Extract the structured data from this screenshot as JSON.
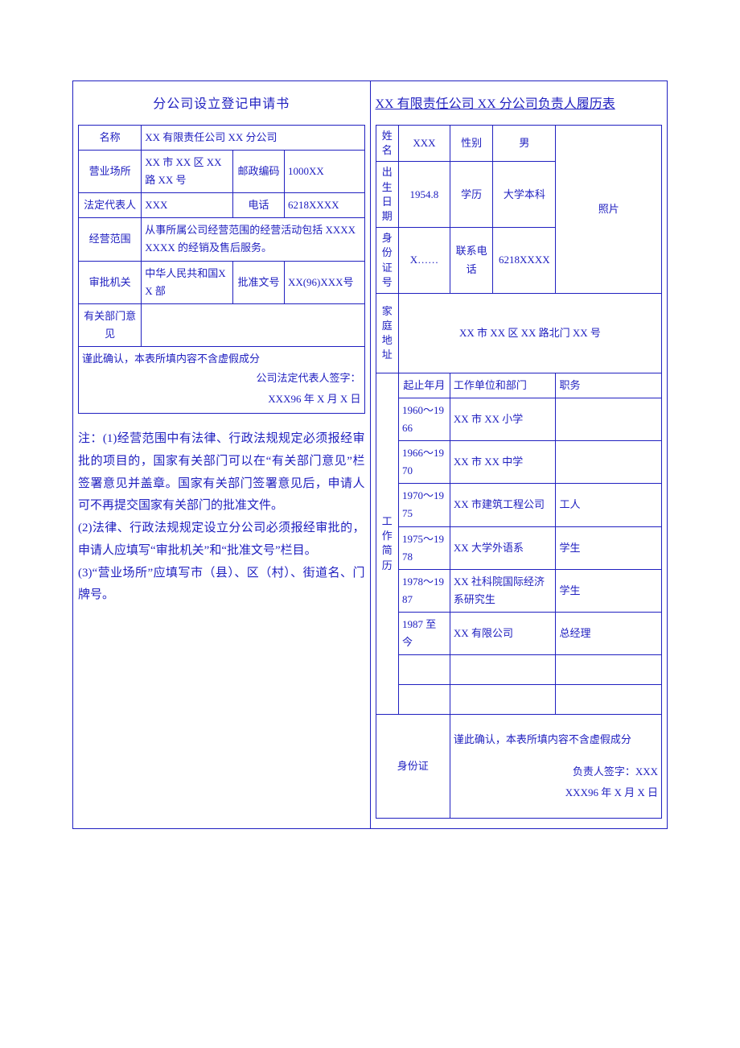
{
  "left": {
    "title": "分公司设立登记申请书",
    "labels": {
      "name": "名称",
      "place": "营业场所",
      "postal": "邮政编码",
      "legal": "法定代表人",
      "phone": "电话",
      "scope": "经营范围",
      "approver": "审批机关",
      "approve_no": "批准文号",
      "dept_opinion": "有关部门意见"
    },
    "values": {
      "name": "XX 有限责任公司 XX 分公司",
      "place": "XX 市 XX 区 XX路 XX 号",
      "postal": "1000XX",
      "legal": "XXX",
      "phone": "6218XXXX",
      "scope": "从事所属公司经营范围的经营活动包括 XXXXXXXX 的经销及售后服务。",
      "approver": "中华人民共和国XX 部",
      "approve_no": "XX(96)XXX号"
    },
    "confirm": "谨此确认，本表所填内容不含虚假成分",
    "sign_label": "公司法定代表人签字：",
    "sign_date": "XXX96 年 X 月 X 日",
    "notes": "注：(1)经营范围中有法律、行政法规规定必须报经审批的项目的，国家有关部门可以在“有关部门意见”栏签署意见并盖章。国家有关部门签署意见后，申请人可不再提交国家有关部门的批准文件。\n(2)法律、行政法规规定设立分公司必须报经审批的，申请人应填写“审批机关”和“批准文号”栏目。\n(3)“营业场所”应填写市（县）、区（村）、街道名、门牌号。"
  },
  "right": {
    "title": "XX 有限责任公司 XX 分公司负责人履历表",
    "labels": {
      "name": "姓名",
      "gender": "性别",
      "dob": "出生日期",
      "edu": "学历",
      "id": "身份证号",
      "contact": "联系电话",
      "addr": "家庭地址",
      "photo": "照片",
      "resume": "工作简历",
      "period": "起止年月",
      "unit": "工作单位和部门",
      "post": "职务",
      "id_section": "身份证"
    },
    "values": {
      "name": "XXX",
      "gender": "男",
      "dob": "1954.8",
      "edu": "大学本科",
      "id": "X……",
      "contact": "6218XXXX",
      "addr": "XX 市 XX 区 XX 路北门 XX 号"
    },
    "resume": [
      {
        "period": "1960～1966",
        "unit": "XX 市 XX 小学",
        "post": ""
      },
      {
        "period": "1966～1970",
        "unit": "XX 市 XX 中学",
        "post": ""
      },
      {
        "period": "1970～1975",
        "unit": "XX 市建筑工程公司",
        "post": "工人"
      },
      {
        "period": "1975～1978",
        "unit": "XX 大学外语系",
        "post": "学生"
      },
      {
        "period": "1978～1987",
        "unit": "XX 社科院国际经济系研究生",
        "post": "学生"
      },
      {
        "period": "1987 至今",
        "unit": "XX 有限公司",
        "post": "总经理"
      }
    ],
    "confirm": "谨此确认，本表所填内容不含虚假成分",
    "sign_label": "负责人签字：XXX",
    "sign_date": "XXX96 年 X 月 X 日"
  }
}
